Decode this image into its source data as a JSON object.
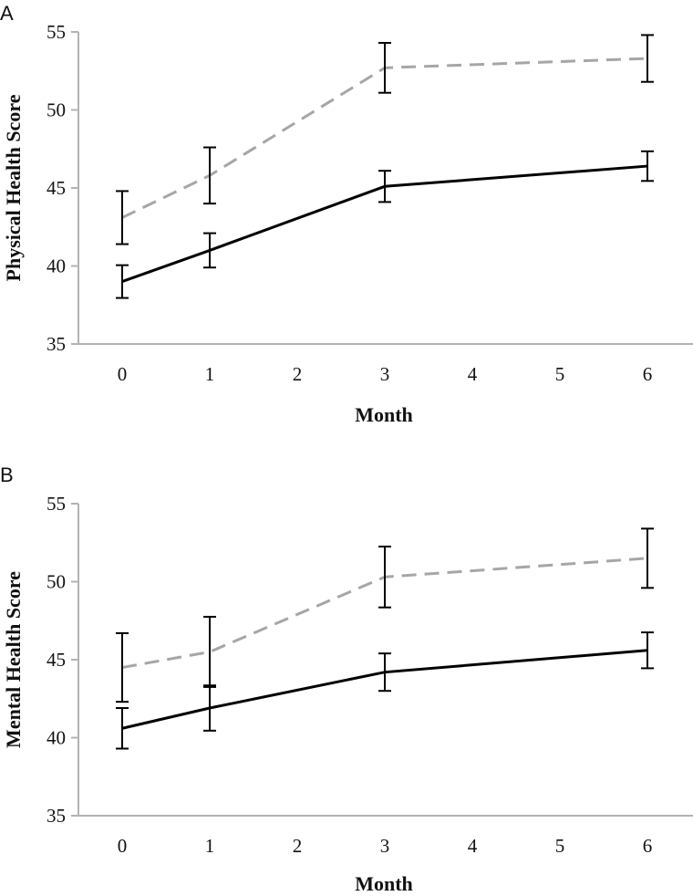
{
  "chart_data": [
    {
      "type": "line",
      "panel_label": "A",
      "xlabel": "Month",
      "ylabel": "Physical Health Score",
      "x_ticks": [
        "0",
        "1",
        "2",
        "3",
        "4",
        "5",
        "6"
      ],
      "y_ticks": [
        "35",
        "40",
        "45",
        "50",
        "55"
      ],
      "xlim": [
        0,
        6
      ],
      "ylim": [
        35,
        55
      ],
      "grid": false,
      "series": [
        {
          "name": "dashed-gray",
          "color": "#a6a6a6",
          "dashed": true,
          "x": [
            0,
            1,
            3,
            6
          ],
          "values": [
            43.1,
            45.8,
            52.7,
            53.3
          ],
          "errors": [
            1.7,
            1.8,
            1.6,
            1.5
          ]
        },
        {
          "name": "solid-black",
          "color": "#000000",
          "dashed": false,
          "x": [
            0,
            1,
            3,
            6
          ],
          "values": [
            39.0,
            41.0,
            45.1,
            46.4
          ],
          "errors": [
            1.05,
            1.1,
            1.0,
            0.95
          ]
        }
      ]
    },
    {
      "type": "line",
      "panel_label": "B",
      "xlabel": "Month",
      "ylabel": "Mental Health Score",
      "x_ticks": [
        "0",
        "1",
        "2",
        "3",
        "4",
        "5",
        "6"
      ],
      "y_ticks": [
        "35",
        "40",
        "45",
        "50",
        "55"
      ],
      "xlim": [
        0,
        6
      ],
      "ylim": [
        35,
        55
      ],
      "grid": false,
      "series": [
        {
          "name": "dashed-gray",
          "color": "#a6a6a6",
          "dashed": true,
          "x": [
            0,
            1,
            3,
            6
          ],
          "values": [
            44.5,
            45.5,
            50.3,
            51.5
          ],
          "errors": [
            2.2,
            2.25,
            1.95,
            1.9
          ]
        },
        {
          "name": "solid-black",
          "color": "#000000",
          "dashed": false,
          "x": [
            0,
            1,
            3,
            6
          ],
          "values": [
            40.6,
            41.9,
            44.2,
            45.6
          ],
          "errors": [
            1.3,
            1.45,
            1.2,
            1.15
          ]
        }
      ]
    }
  ]
}
